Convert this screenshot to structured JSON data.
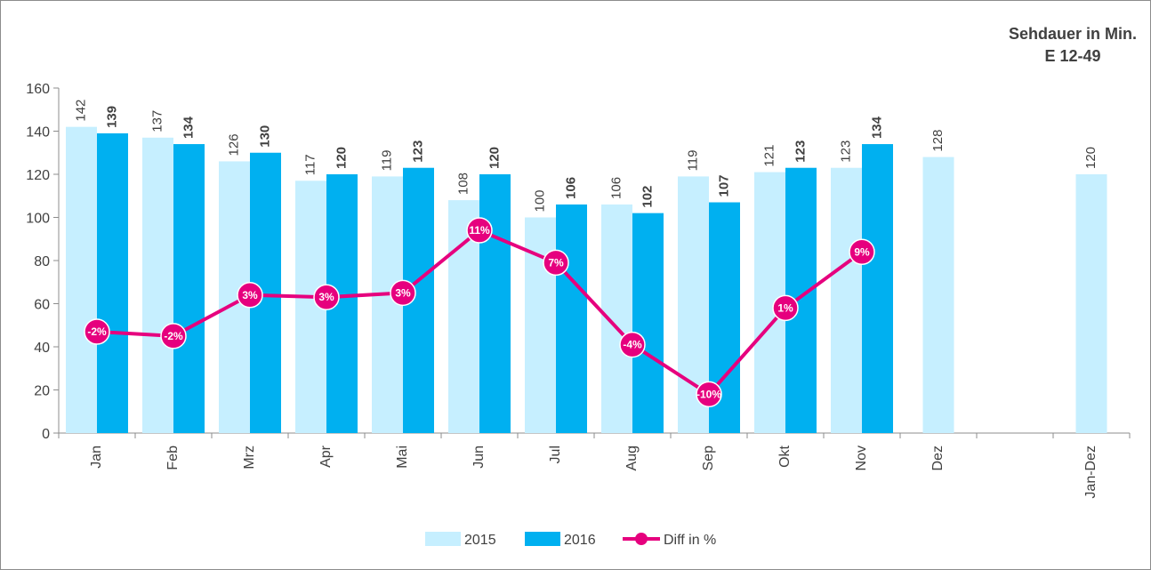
{
  "chart_data": {
    "type": "bar",
    "title_lines": [
      "Sehdauer in Min.",
      "E 12-49"
    ],
    "categories": [
      "Jan",
      "Feb",
      "Mrz",
      "Apr",
      "Mai",
      "Jun",
      "Jul",
      "Aug",
      "Sep",
      "Okt",
      "Nov",
      "Dez",
      "",
      "Jan-Dez"
    ],
    "series": [
      {
        "name": "2015",
        "color": "#c6efff",
        "values": [
          142,
          137,
          126,
          117,
          119,
          108,
          100,
          106,
          119,
          121,
          123,
          128,
          null,
          120
        ]
      },
      {
        "name": "2016",
        "color": "#00b0f0",
        "values": [
          139,
          134,
          130,
          120,
          123,
          120,
          106,
          102,
          107,
          123,
          134,
          null,
          null,
          null
        ]
      },
      {
        "name": "Diff in %",
        "type": "line",
        "color": "#e6007e",
        "values": [
          -2,
          -2,
          3,
          3,
          3,
          11,
          7,
          -4,
          -10,
          1,
          9,
          null,
          null,
          null
        ],
        "labels": [
          "-2%",
          "-2%",
          "3%",
          "3%",
          "3%",
          "11%",
          "7%",
          "-4%",
          "-10%",
          "1%",
          "9%",
          null,
          null,
          null
        ],
        "y_on_left_axis": [
          47,
          45,
          64,
          63,
          65,
          94,
          79,
          41,
          18,
          58,
          84,
          null,
          null,
          null
        ]
      }
    ],
    "ylim": [
      0,
      160
    ],
    "yticks": [
      0,
      20,
      40,
      60,
      80,
      100,
      120,
      140,
      160
    ],
    "grid": false,
    "legend_position": "bottom"
  }
}
